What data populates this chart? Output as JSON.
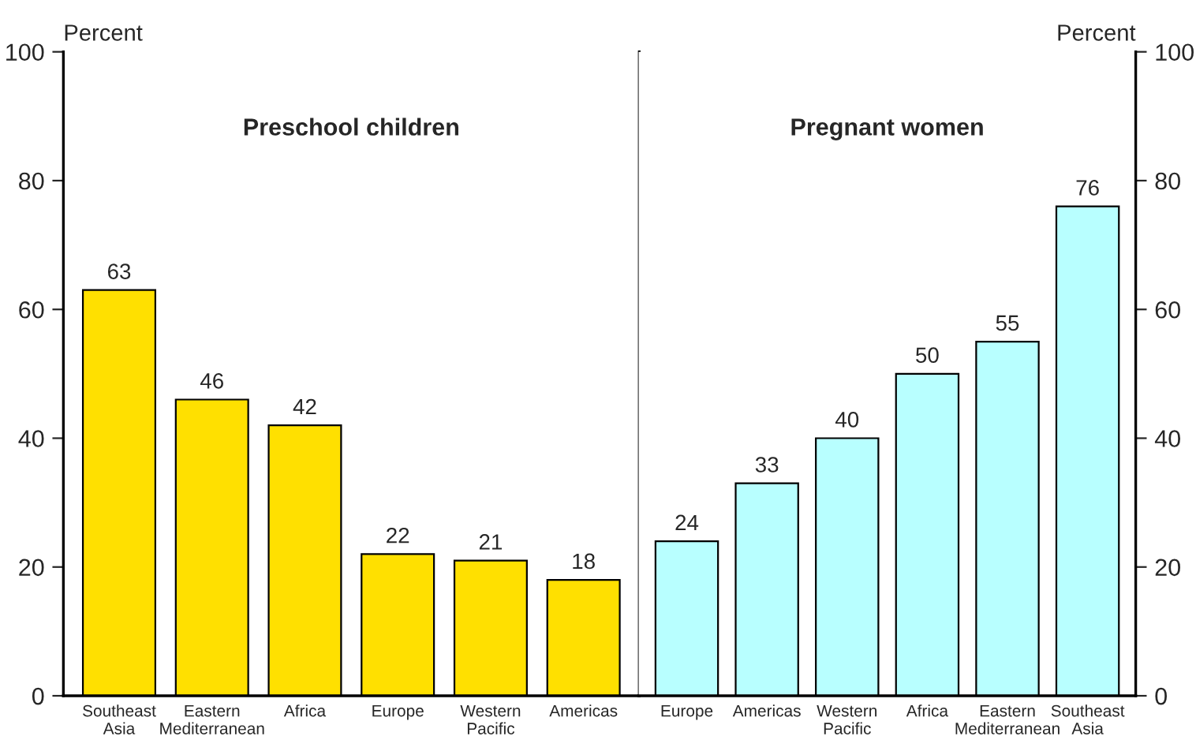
{
  "chart_data": [
    {
      "type": "bar",
      "title": "Preschool children",
      "ylabel": "Percent",
      "categories": [
        "Southeast\nAsia",
        "Eastern\nMediterranean",
        "Africa",
        "Europe",
        "Western\nPacific",
        "Americas"
      ],
      "values": [
        63,
        46,
        42,
        22,
        21,
        18
      ],
      "color": "#ffe000",
      "ylim": [
        0,
        100
      ],
      "yticks": [
        0,
        20,
        40,
        60,
        80,
        100
      ],
      "grid": false,
      "data_labels": true,
      "legend": false
    },
    {
      "type": "bar",
      "title": "Pregnant women",
      "ylabel": "Percent",
      "categories": [
        "Europe",
        "Americas",
        "Western\nPacific",
        "Africa",
        "Eastern\nMediterranean",
        "Southeast\nAsia"
      ],
      "values": [
        24,
        33,
        40,
        50,
        55,
        76
      ],
      "color": "#b8ffff",
      "ylim": [
        0,
        100
      ],
      "yticks": [
        0,
        20,
        40,
        60,
        80,
        100
      ],
      "grid": false,
      "data_labels": true,
      "legend": false
    }
  ]
}
